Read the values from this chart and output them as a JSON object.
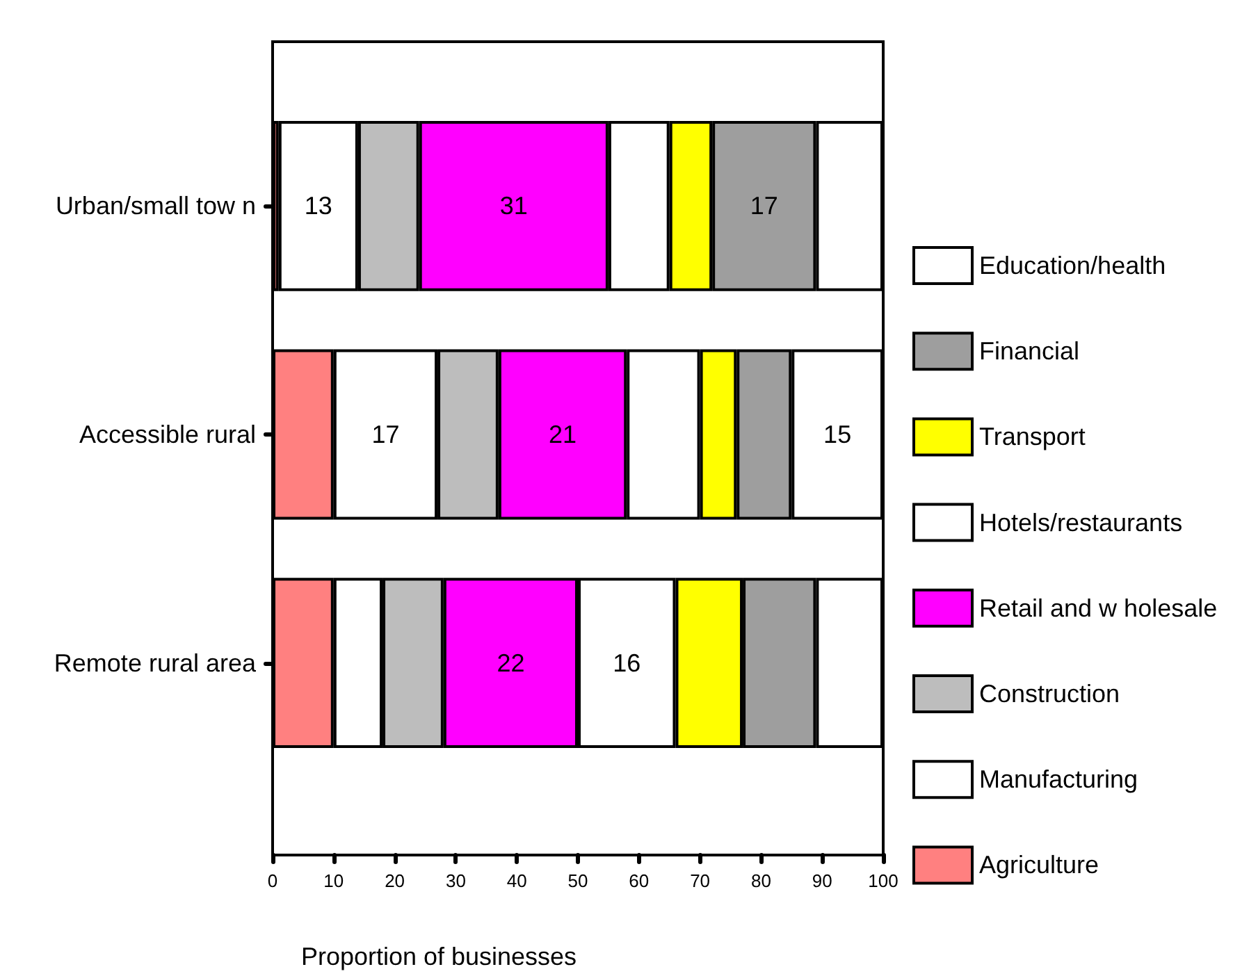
{
  "chart_data": {
    "type": "bar",
    "orientation": "horizontal",
    "stacked": true,
    "xlabel": "Proportion of businesses",
    "categories": [
      "Urban/small tow n",
      "Accessible rural",
      "Remote rural area"
    ],
    "xlim": [
      0,
      100
    ],
    "xticks": [
      0,
      10,
      20,
      30,
      40,
      50,
      60,
      70,
      80,
      90,
      100
    ],
    "grid": false,
    "legend": "right",
    "series": [
      {
        "name": "Agriculture",
        "color": "#ff8080",
        "values": [
          1,
          10,
          10
        ]
      },
      {
        "name": "Manufacturing",
        "color": "#ffffff",
        "values": [
          13,
          17,
          8
        ],
        "value_labels": [
          "13",
          "17",
          null
        ]
      },
      {
        "name": "Construction",
        "color": "#bdbdbd",
        "values": [
          10,
          10,
          10
        ]
      },
      {
        "name": "Retail and w holesale",
        "color": "#ff00ff",
        "values": [
          31,
          21,
          22
        ],
        "value_labels": [
          "31",
          "21",
          "22"
        ]
      },
      {
        "name": "Hotels/restaurants",
        "color": "#ffffff",
        "values": [
          10,
          12,
          16
        ],
        "value_labels": [
          null,
          null,
          "16"
        ]
      },
      {
        "name": "Transport",
        "color": "#ffff00",
        "values": [
          7,
          6,
          11
        ]
      },
      {
        "name": "Financial",
        "color": "#9e9e9e",
        "values": [
          17,
          9,
          12
        ],
        "value_labels": [
          "17",
          null,
          null
        ]
      },
      {
        "name": "Education/health",
        "color": "#ffffff",
        "values": [
          11,
          15,
          11
        ],
        "value_labels": [
          null,
          "15",
          null
        ]
      }
    ]
  }
}
